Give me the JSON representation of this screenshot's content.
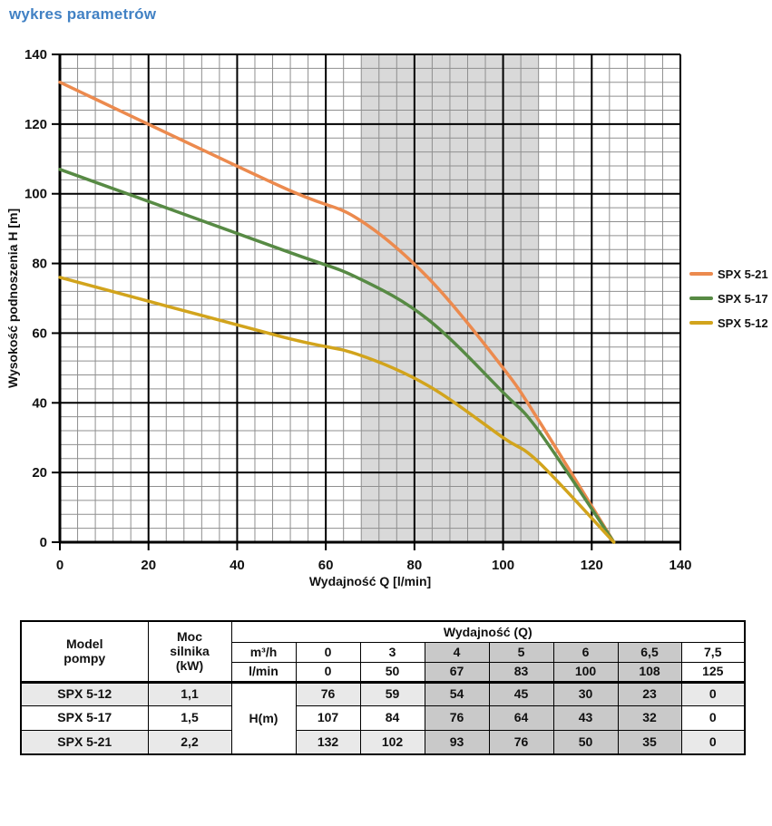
{
  "page": {
    "title": "wykres parametrów"
  },
  "chart_data": {
    "type": "line",
    "xlabel": "Wydajność Q [l/min]",
    "ylabel": "Wysokość podnoszenia H [m]",
    "xlim": [
      0,
      140
    ],
    "ylim": [
      0,
      140
    ],
    "x_ticks": [
      0,
      20,
      40,
      60,
      80,
      100,
      120,
      140
    ],
    "y_ticks": [
      0,
      20,
      40,
      60,
      80,
      100,
      120,
      140
    ],
    "minor_grid_step": 4,
    "major_grid_step": 20,
    "grid": "on",
    "legend_position": "right",
    "highlight_band": {
      "x_start": 68,
      "x_end": 108,
      "color": "#d9d9d9"
    },
    "series": [
      {
        "name": "SPX 5-21",
        "color": "#ec8a4e",
        "x": [
          0,
          50,
          67,
          83,
          100,
          108,
          125
        ],
        "y": [
          132,
          102,
          93,
          76,
          50,
          35,
          0
        ]
      },
      {
        "name": "SPX 5-17",
        "color": "#578a44",
        "x": [
          0,
          50,
          67,
          83,
          100,
          108,
          125
        ],
        "y": [
          107,
          84,
          76,
          64,
          43,
          32,
          0
        ]
      },
      {
        "name": "SPX 5-12",
        "color": "#d2a41c",
        "x": [
          0,
          50,
          67,
          83,
          100,
          108,
          125
        ],
        "y": [
          76,
          59,
          54,
          45,
          30,
          23,
          0
        ]
      }
    ]
  },
  "table": {
    "header": {
      "model": "Model\npompy",
      "power": "Moc\nsilnika\n(kW)",
      "wydajnosc": "Wydajność (Q)",
      "m3h_label": "m³/h",
      "lmin_label": "l/min",
      "hm_label": "H(m)",
      "m3h_values": [
        "0",
        "3",
        "4",
        "5",
        "6",
        "6,5",
        "7,5"
      ],
      "lmin_values": [
        "0",
        "50",
        "67",
        "83",
        "100",
        "108",
        "125"
      ]
    },
    "rows": [
      {
        "model": "SPX 5-12",
        "power": "1,1",
        "h": [
          "76",
          "59",
          "54",
          "45",
          "30",
          "23",
          "0"
        ]
      },
      {
        "model": "SPX 5-17",
        "power": "1,5",
        "h": [
          "107",
          "84",
          "76",
          "64",
          "43",
          "32",
          "0"
        ]
      },
      {
        "model": "SPX 5-21",
        "power": "2,2",
        "h": [
          "132",
          "102",
          "93",
          "76",
          "50",
          "35",
          "0"
        ]
      }
    ]
  }
}
